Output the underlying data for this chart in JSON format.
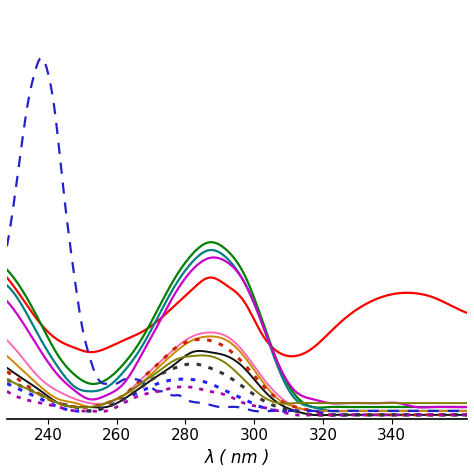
{
  "xlim": [
    228,
    362
  ],
  "ylim": [
    0,
    1.05
  ],
  "xlabel": "λ ( nm )",
  "xlabel_fontsize": 12,
  "tick_fontsize": 11,
  "background_color": "#ffffff",
  "series": [
    {
      "color": "#ff0000",
      "linestyle": "solid",
      "linewidth": 1.6,
      "label": "red_solid",
      "knots_x": [
        228,
        233,
        238,
        243,
        248,
        252,
        257,
        262,
        267,
        272,
        277,
        282,
        287,
        292,
        297,
        302,
        307,
        312,
        317,
        322,
        327,
        332,
        337,
        342,
        347,
        352,
        357,
        362
      ],
      "knots_y": [
        0.36,
        0.3,
        0.24,
        0.2,
        0.18,
        0.17,
        0.18,
        0.2,
        0.22,
        0.25,
        0.29,
        0.33,
        0.36,
        0.34,
        0.3,
        0.22,
        0.17,
        0.16,
        0.18,
        0.22,
        0.26,
        0.29,
        0.31,
        0.32,
        0.32,
        0.31,
        0.29,
        0.27
      ]
    },
    {
      "color": "#008000",
      "linestyle": "solid",
      "linewidth": 1.6,
      "label": "green_solid",
      "knots_x": [
        228,
        233,
        238,
        243,
        248,
        252,
        257,
        262,
        267,
        272,
        277,
        282,
        287,
        292,
        297,
        302,
        307,
        312,
        317,
        322,
        327,
        332,
        337,
        342,
        347,
        352,
        357,
        362
      ],
      "knots_y": [
        0.38,
        0.32,
        0.24,
        0.16,
        0.11,
        0.09,
        0.1,
        0.14,
        0.2,
        0.28,
        0.36,
        0.42,
        0.45,
        0.43,
        0.37,
        0.26,
        0.14,
        0.06,
        0.03,
        0.03,
        0.03,
        0.03,
        0.03,
        0.03,
        0.03,
        0.03,
        0.03,
        0.03
      ]
    },
    {
      "color": "#008080",
      "linestyle": "solid",
      "linewidth": 1.6,
      "label": "teal_solid",
      "knots_x": [
        228,
        233,
        238,
        243,
        248,
        252,
        257,
        262,
        267,
        272,
        277,
        282,
        287,
        292,
        297,
        302,
        307,
        312,
        317,
        322,
        327,
        332,
        337,
        342,
        347,
        352,
        357,
        362
      ],
      "knots_y": [
        0.34,
        0.28,
        0.2,
        0.13,
        0.08,
        0.07,
        0.08,
        0.12,
        0.18,
        0.26,
        0.34,
        0.4,
        0.43,
        0.41,
        0.35,
        0.25,
        0.13,
        0.05,
        0.03,
        0.02,
        0.02,
        0.02,
        0.02,
        0.02,
        0.02,
        0.02,
        0.02,
        0.02
      ]
    },
    {
      "color": "#cc00cc",
      "linestyle": "solid",
      "linewidth": 1.6,
      "label": "magenta_solid",
      "knots_x": [
        228,
        233,
        238,
        243,
        248,
        252,
        257,
        262,
        267,
        272,
        277,
        282,
        287,
        292,
        297,
        302,
        307,
        312,
        317,
        322,
        327,
        332,
        337,
        342,
        347,
        352,
        357,
        362
      ],
      "knots_y": [
        0.3,
        0.24,
        0.17,
        0.11,
        0.07,
        0.05,
        0.06,
        0.09,
        0.16,
        0.24,
        0.32,
        0.38,
        0.41,
        0.4,
        0.35,
        0.25,
        0.14,
        0.07,
        0.05,
        0.04,
        0.04,
        0.04,
        0.04,
        0.04,
        0.03,
        0.03,
        0.03,
        0.03
      ]
    },
    {
      "color": "#ff69b4",
      "linestyle": "solid",
      "linewidth": 1.4,
      "label": "pink_solid",
      "knots_x": [
        228,
        233,
        238,
        243,
        248,
        252,
        257,
        262,
        267,
        272,
        277,
        282,
        287,
        292,
        297,
        302,
        307,
        312,
        317,
        322,
        327,
        332,
        337,
        342,
        347,
        352,
        357,
        362
      ],
      "knots_y": [
        0.2,
        0.15,
        0.1,
        0.07,
        0.05,
        0.04,
        0.04,
        0.06,
        0.1,
        0.14,
        0.18,
        0.21,
        0.22,
        0.21,
        0.17,
        0.11,
        0.06,
        0.03,
        0.02,
        0.02,
        0.02,
        0.02,
        0.02,
        0.02,
        0.02,
        0.02,
        0.02,
        0.02
      ]
    },
    {
      "color": "#cc8800",
      "linestyle": "solid",
      "linewidth": 1.4,
      "label": "orange_solid",
      "knots_x": [
        228,
        233,
        238,
        243,
        248,
        252,
        257,
        262,
        267,
        272,
        277,
        282,
        287,
        292,
        297,
        302,
        307,
        312,
        317,
        322,
        327,
        332,
        337,
        342,
        347,
        352,
        357,
        362
      ],
      "knots_y": [
        0.16,
        0.12,
        0.08,
        0.05,
        0.04,
        0.03,
        0.04,
        0.06,
        0.09,
        0.13,
        0.17,
        0.2,
        0.21,
        0.2,
        0.16,
        0.1,
        0.05,
        0.03,
        0.02,
        0.02,
        0.02,
        0.02,
        0.02,
        0.02,
        0.02,
        0.02,
        0.02,
        0.02
      ]
    },
    {
      "color": "#111111",
      "linestyle": "solid",
      "linewidth": 1.4,
      "label": "black_solid",
      "knots_x": [
        228,
        233,
        238,
        243,
        248,
        252,
        257,
        262,
        267,
        272,
        277,
        282,
        287,
        292,
        297,
        302,
        307,
        312,
        317,
        322,
        327,
        332,
        337,
        342,
        347,
        352,
        357,
        362
      ],
      "knots_y": [
        0.13,
        0.1,
        0.07,
        0.04,
        0.03,
        0.03,
        0.03,
        0.05,
        0.08,
        0.11,
        0.14,
        0.17,
        0.17,
        0.16,
        0.13,
        0.08,
        0.04,
        0.02,
        0.01,
        0.01,
        0.01,
        0.01,
        0.01,
        0.01,
        0.01,
        0.01,
        0.01,
        0.01
      ]
    },
    {
      "color": "#cc2200",
      "linestyle": "dotted",
      "linewidth": 2.2,
      "label": "darkred_dotted",
      "knots_x": [
        228,
        233,
        238,
        243,
        248,
        252,
        257,
        262,
        267,
        272,
        277,
        282,
        287,
        292,
        297,
        302,
        307,
        312,
        317,
        322,
        327,
        332,
        337,
        342,
        347,
        352,
        357,
        362
      ],
      "knots_y": [
        0.12,
        0.09,
        0.06,
        0.04,
        0.03,
        0.03,
        0.04,
        0.06,
        0.1,
        0.14,
        0.18,
        0.2,
        0.2,
        0.18,
        0.14,
        0.09,
        0.05,
        0.03,
        0.02,
        0.01,
        0.01,
        0.01,
        0.01,
        0.01,
        0.01,
        0.01,
        0.01,
        0.01
      ]
    },
    {
      "color": "#2222cc",
      "linestyle": "dashed",
      "linewidth": 1.6,
      "label": "blue_dashed",
      "knots_x": [
        228,
        230,
        232,
        234,
        236,
        238,
        240,
        242,
        244,
        246,
        248,
        250,
        252,
        254,
        256,
        258,
        260,
        262,
        264,
        266,
        268,
        270,
        272,
        274,
        276,
        278,
        280,
        285,
        290,
        295,
        300,
        305,
        310,
        315,
        320,
        330,
        340,
        350,
        362
      ],
      "knots_y": [
        0.44,
        0.55,
        0.68,
        0.8,
        0.88,
        0.92,
        0.88,
        0.78,
        0.62,
        0.47,
        0.34,
        0.23,
        0.16,
        0.11,
        0.09,
        0.09,
        0.09,
        0.1,
        0.1,
        0.1,
        0.09,
        0.08,
        0.07,
        0.07,
        0.06,
        0.06,
        0.05,
        0.04,
        0.03,
        0.03,
        0.02,
        0.02,
        0.02,
        0.02,
        0.02,
        0.02,
        0.02,
        0.02,
        0.02
      ]
    },
    {
      "color": "#2222ff",
      "linestyle": "dotted",
      "linewidth": 2.2,
      "label": "blue_dotted",
      "knots_x": [
        228,
        233,
        238,
        243,
        248,
        252,
        257,
        262,
        267,
        272,
        277,
        282,
        287,
        292,
        297,
        302,
        307,
        312,
        317,
        322,
        327,
        332,
        337,
        342,
        347,
        352,
        357,
        362
      ],
      "knots_y": [
        0.09,
        0.07,
        0.05,
        0.03,
        0.02,
        0.02,
        0.03,
        0.05,
        0.07,
        0.09,
        0.1,
        0.1,
        0.09,
        0.07,
        0.05,
        0.03,
        0.02,
        0.02,
        0.02,
        0.01,
        0.01,
        0.01,
        0.01,
        0.01,
        0.01,
        0.01,
        0.01,
        0.01
      ]
    },
    {
      "color": "#333333",
      "linestyle": "dotted",
      "linewidth": 2.2,
      "label": "black_dotted",
      "knots_x": [
        228,
        233,
        238,
        243,
        248,
        252,
        257,
        262,
        267,
        272,
        277,
        282,
        287,
        292,
        297,
        302,
        307,
        312,
        317,
        322,
        327,
        332,
        337,
        342,
        347,
        352,
        357,
        362
      ],
      "knots_y": [
        0.1,
        0.08,
        0.06,
        0.04,
        0.03,
        0.02,
        0.03,
        0.05,
        0.08,
        0.11,
        0.13,
        0.14,
        0.13,
        0.11,
        0.08,
        0.05,
        0.03,
        0.02,
        0.01,
        0.01,
        0.01,
        0.01,
        0.01,
        0.01,
        0.01,
        0.01,
        0.01,
        0.01
      ]
    },
    {
      "color": "#808000",
      "linestyle": "solid",
      "linewidth": 1.4,
      "label": "olive_solid",
      "knots_x": [
        228,
        233,
        238,
        243,
        248,
        252,
        257,
        262,
        267,
        272,
        277,
        282,
        287,
        292,
        297,
        302,
        307,
        312,
        317,
        322,
        327,
        332,
        337,
        342,
        347,
        352,
        357,
        362
      ],
      "knots_y": [
        0.1,
        0.08,
        0.06,
        0.04,
        0.03,
        0.03,
        0.04,
        0.06,
        0.09,
        0.12,
        0.15,
        0.16,
        0.16,
        0.14,
        0.1,
        0.06,
        0.04,
        0.04,
        0.04,
        0.04,
        0.04,
        0.04,
        0.04,
        0.04,
        0.04,
        0.04,
        0.04,
        0.04
      ]
    },
    {
      "color": "#aa00aa",
      "linestyle": "dotted",
      "linewidth": 2.0,
      "label": "purple_dotted",
      "knots_x": [
        228,
        233,
        238,
        243,
        248,
        252,
        257,
        262,
        267,
        272,
        277,
        282,
        287,
        292,
        297,
        302,
        307,
        312,
        317,
        322,
        327,
        332,
        337,
        342,
        347,
        352,
        357,
        362
      ],
      "knots_y": [
        0.07,
        0.05,
        0.04,
        0.03,
        0.02,
        0.02,
        0.02,
        0.04,
        0.06,
        0.07,
        0.08,
        0.08,
        0.07,
        0.06,
        0.04,
        0.03,
        0.02,
        0.01,
        0.01,
        0.01,
        0.01,
        0.01,
        0.01,
        0.01,
        0.01,
        0.01,
        0.01,
        0.01
      ]
    }
  ]
}
